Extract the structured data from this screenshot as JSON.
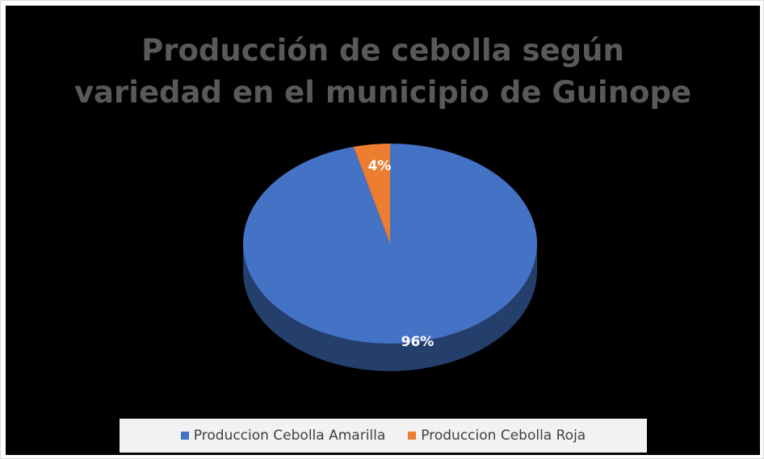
{
  "chart_data": {
    "type": "pie",
    "title_lines": [
      "Producción de cebolla según",
      "variedad en el municipio de Guinope"
    ],
    "categories": [
      "Produccion Cebolla Amarilla",
      "Produccion Cebolla Roja"
    ],
    "values": [
      96,
      4
    ],
    "data_labels": [
      "96%",
      "4%"
    ],
    "colors": [
      "#4472c4",
      "#ed7d31"
    ],
    "legend_position": "bottom",
    "style": "3d"
  },
  "colors": {
    "background": "#000000",
    "title": "#595959",
    "legend_background": "#f2f2f2"
  }
}
